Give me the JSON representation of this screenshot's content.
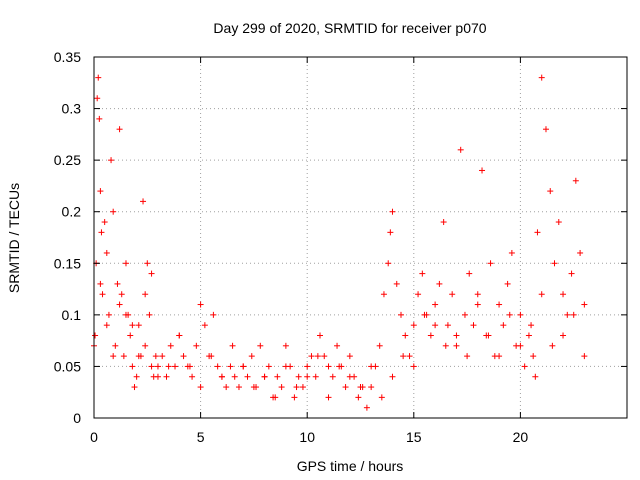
{
  "chart_data": {
    "type": "scatter",
    "title": "Day 299 of 2020, SRMTID for receiver p070",
    "xlabel": "GPS time / hours",
    "ylabel": "SRMTID / TECUs",
    "xlim": [
      0,
      25
    ],
    "ylim": [
      0,
      0.35
    ],
    "xticks": [
      0,
      5,
      10,
      15,
      20
    ],
    "xtick_labels": [
      "0",
      "5",
      "10",
      "15",
      "20"
    ],
    "yticks": [
      0,
      0.05,
      0.1,
      0.15,
      0.2,
      0.25,
      0.3,
      0.35
    ],
    "ytick_labels": [
      "0",
      "0.05",
      "0.1",
      "0.15",
      "0.2",
      "0.25",
      "0.3",
      "0.35"
    ],
    "grid": true,
    "marker": "plus",
    "color": "#ff0000",
    "series": [
      {
        "name": "SRMTID",
        "x": [
          0.0,
          0.1,
          0.15,
          0.2,
          0.25,
          0.3,
          0.35,
          0.4,
          0.5,
          0.6,
          0.7,
          0.8,
          0.9,
          1.0,
          1.1,
          1.2,
          1.3,
          1.4,
          1.5,
          1.6,
          1.7,
          1.8,
          1.9,
          2.0,
          2.1,
          2.2,
          2.3,
          2.4,
          2.5,
          2.6,
          2.7,
          2.8,
          2.9,
          3.0,
          3.2,
          3.4,
          3.6,
          3.8,
          4.0,
          4.2,
          4.4,
          4.6,
          4.8,
          5.0,
          5.2,
          5.4,
          5.6,
          5.8,
          6.0,
          6.2,
          6.4,
          6.6,
          6.8,
          7.0,
          7.2,
          7.4,
          7.6,
          7.8,
          8.0,
          8.2,
          8.4,
          8.6,
          8.8,
          9.0,
          9.2,
          9.4,
          9.6,
          9.8,
          10.0,
          10.2,
          10.4,
          10.6,
          10.8,
          11.0,
          11.2,
          11.4,
          11.6,
          11.8,
          12.0,
          12.2,
          12.4,
          12.6,
          12.8,
          13.0,
          13.2,
          13.4,
          13.6,
          13.8,
          13.9,
          14.0,
          14.2,
          14.4,
          14.6,
          14.8,
          15.0,
          15.2,
          15.4,
          15.6,
          15.8,
          16.0,
          16.2,
          16.4,
          16.6,
          16.8,
          17.0,
          17.2,
          17.4,
          17.6,
          17.8,
          18.0,
          18.2,
          18.4,
          18.6,
          18.8,
          19.0,
          19.2,
          19.4,
          19.6,
          19.8,
          20.0,
          20.2,
          20.4,
          20.6,
          20.7,
          20.8,
          21.0,
          21.2,
          21.4,
          21.6,
          21.8,
          22.0,
          22.2,
          22.4,
          22.6,
          22.8,
          23.0,
          0.05,
          0.3,
          0.6,
          0.9,
          1.2,
          1.5,
          1.8,
          2.1,
          2.4,
          2.7,
          3.0,
          3.5,
          4.0,
          4.5,
          5.0,
          5.5,
          6.0,
          6.5,
          7.0,
          7.5,
          8.0,
          8.5,
          9.0,
          9.5,
          10.0,
          10.5,
          11.0,
          11.5,
          12.0,
          12.5,
          13.0,
          13.5,
          14.0,
          14.5,
          15.0,
          15.5,
          16.0,
          16.5,
          17.0,
          17.5,
          18.0,
          18.5,
          19.0,
          19.5,
          20.0,
          20.5,
          21.0,
          21.5,
          22.0,
          22.5,
          23.0
        ],
        "y": [
          0.07,
          0.15,
          0.31,
          0.33,
          0.29,
          0.22,
          0.18,
          0.12,
          0.19,
          0.16,
          0.1,
          0.25,
          0.2,
          0.07,
          0.13,
          0.11,
          0.12,
          0.06,
          0.15,
          0.1,
          0.08,
          0.05,
          0.03,
          0.04,
          0.09,
          0.06,
          0.21,
          0.12,
          0.15,
          0.1,
          0.05,
          0.04,
          0.06,
          0.05,
          0.06,
          0.04,
          0.07,
          0.05,
          0.08,
          0.06,
          0.05,
          0.04,
          0.07,
          0.11,
          0.09,
          0.06,
          0.1,
          0.05,
          0.04,
          0.03,
          0.05,
          0.04,
          0.03,
          0.05,
          0.04,
          0.06,
          0.03,
          0.07,
          0.04,
          0.05,
          0.02,
          0.04,
          0.03,
          0.07,
          0.05,
          0.02,
          0.04,
          0.03,
          0.05,
          0.06,
          0.04,
          0.08,
          0.06,
          0.05,
          0.04,
          0.07,
          0.05,
          0.03,
          0.06,
          0.04,
          0.02,
          0.03,
          0.01,
          0.03,
          0.05,
          0.07,
          0.12,
          0.15,
          0.18,
          0.2,
          0.13,
          0.1,
          0.08,
          0.06,
          0.09,
          0.12,
          0.14,
          0.1,
          0.08,
          0.11,
          0.13,
          0.19,
          0.09,
          0.12,
          0.07,
          0.26,
          0.1,
          0.14,
          0.09,
          0.12,
          0.24,
          0.08,
          0.15,
          0.06,
          0.11,
          0.09,
          0.13,
          0.16,
          0.07,
          0.1,
          0.05,
          0.08,
          0.06,
          0.04,
          0.18,
          0.33,
          0.28,
          0.22,
          0.15,
          0.19,
          0.12,
          0.1,
          0.14,
          0.23,
          0.16,
          0.11,
          0.08,
          0.13,
          0.09,
          0.06,
          0.28,
          0.1,
          0.09,
          0.06,
          0.07,
          0.14,
          0.04,
          0.05,
          0.08,
          0.05,
          0.03,
          0.06,
          0.04,
          0.07,
          0.05,
          0.03,
          0.04,
          0.02,
          0.05,
          0.03,
          0.04,
          0.06,
          0.02,
          0.05,
          0.04,
          0.03,
          0.05,
          0.02,
          0.04,
          0.06,
          0.05,
          0.1,
          0.09,
          0.07,
          0.08,
          0.06,
          0.11,
          0.08,
          0.06,
          0.1,
          0.07,
          0.09,
          0.12,
          0.07,
          0.08,
          0.1,
          0.06
        ]
      }
    ]
  }
}
